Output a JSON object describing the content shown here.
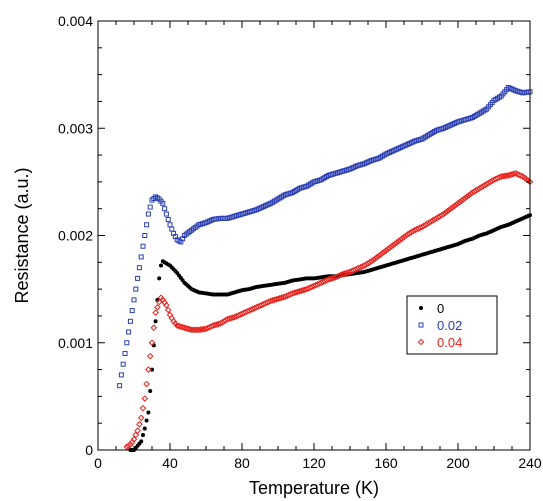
{
  "chart_data": {
    "type": "scatter",
    "title": "",
    "xlabel": "Temperature (K)",
    "ylabel": "Resistance (a.u.)",
    "xlim": [
      0,
      240
    ],
    "ylim": [
      0,
      0.004
    ],
    "x_ticks": [
      0,
      40,
      80,
      120,
      160,
      200,
      240
    ],
    "x_tick_labels": [
      "0",
      "40",
      "80",
      "120",
      "160",
      "200",
      "240"
    ],
    "y_ticks": [
      0,
      0.001,
      0.002,
      0.003,
      0.004
    ],
    "y_tick_labels": [
      "0",
      "0.001",
      "0.002",
      "0.003",
      "0.004"
    ],
    "grid": false,
    "legend_position": "right",
    "series": [
      {
        "name": "0",
        "color": "#000000",
        "marker": "circle",
        "points": [
          [
            18,
            0.0
          ],
          [
            20,
            0.0
          ],
          [
            22,
            4e-05
          ],
          [
            24,
            8e-05
          ],
          [
            26,
            0.0002
          ],
          [
            28,
            0.00035
          ],
          [
            30,
            0.00075
          ],
          [
            32,
            0.0012
          ],
          [
            34,
            0.0016
          ],
          [
            35,
            0.00172
          ],
          [
            36,
            0.00176
          ],
          [
            38,
            0.00174
          ],
          [
            40,
            0.00172
          ],
          [
            44,
            0.00165
          ],
          [
            48,
            0.00156
          ],
          [
            52,
            0.0015
          ],
          [
            56,
            0.00147
          ],
          [
            60,
            0.00146
          ],
          [
            64,
            0.00145
          ],
          [
            68,
            0.00145
          ],
          [
            72,
            0.00145
          ],
          [
            76,
            0.00147
          ],
          [
            80,
            0.00149
          ],
          [
            84,
            0.0015
          ],
          [
            88,
            0.00152
          ],
          [
            92,
            0.00153
          ],
          [
            96,
            0.00154
          ],
          [
            100,
            0.00155
          ],
          [
            104,
            0.00156
          ],
          [
            108,
            0.00158
          ],
          [
            112,
            0.00159
          ],
          [
            116,
            0.0016
          ],
          [
            120,
            0.0016
          ],
          [
            124,
            0.00161
          ],
          [
            128,
            0.00162
          ],
          [
            132,
            0.00162
          ],
          [
            136,
            0.00163
          ],
          [
            140,
            0.00164
          ],
          [
            144,
            0.00165
          ],
          [
            148,
            0.00166
          ],
          [
            152,
            0.00168
          ],
          [
            156,
            0.0017
          ],
          [
            160,
            0.00172
          ],
          [
            164,
            0.00174
          ],
          [
            168,
            0.00176
          ],
          [
            172,
            0.00178
          ],
          [
            176,
            0.0018
          ],
          [
            180,
            0.00182
          ],
          [
            184,
            0.00184
          ],
          [
            188,
            0.00186
          ],
          [
            192,
            0.00188
          ],
          [
            196,
            0.0019
          ],
          [
            200,
            0.00192
          ],
          [
            204,
            0.00195
          ],
          [
            208,
            0.00197
          ],
          [
            212,
            0.002
          ],
          [
            216,
            0.00202
          ],
          [
            220,
            0.00205
          ],
          [
            224,
            0.00208
          ],
          [
            228,
            0.0021
          ],
          [
            232,
            0.00213
          ],
          [
            236,
            0.00216
          ],
          [
            240,
            0.00219
          ]
        ]
      },
      {
        "name": "0.02",
        "color": "#2b3fb3",
        "marker": "square",
        "points": [
          [
            12,
            0.0006
          ],
          [
            14,
            0.0008
          ],
          [
            16,
            0.001
          ],
          [
            18,
            0.0012
          ],
          [
            20,
            0.0014
          ],
          [
            22,
            0.0016
          ],
          [
            24,
            0.0018
          ],
          [
            26,
            0.002
          ],
          [
            28,
            0.0022
          ],
          [
            30,
            0.00233
          ],
          [
            32,
            0.00236
          ],
          [
            34,
            0.00234
          ],
          [
            36,
            0.0023
          ],
          [
            38,
            0.0022
          ],
          [
            40,
            0.0021
          ],
          [
            42,
            0.00202
          ],
          [
            44,
            0.00196
          ],
          [
            46,
            0.00194
          ],
          [
            48,
            0.002
          ],
          [
            52,
            0.00205
          ],
          [
            56,
            0.0021
          ],
          [
            60,
            0.00212
          ],
          [
            64,
            0.00215
          ],
          [
            68,
            0.00216
          ],
          [
            72,
            0.00216
          ],
          [
            76,
            0.00218
          ],
          [
            80,
            0.0022
          ],
          [
            84,
            0.00222
          ],
          [
            88,
            0.00224
          ],
          [
            92,
            0.00227
          ],
          [
            96,
            0.0023
          ],
          [
            100,
            0.00234
          ],
          [
            104,
            0.00238
          ],
          [
            108,
            0.0024
          ],
          [
            112,
            0.00244
          ],
          [
            116,
            0.00246
          ],
          [
            120,
            0.0025
          ],
          [
            124,
            0.00252
          ],
          [
            128,
            0.00256
          ],
          [
            132,
            0.00258
          ],
          [
            136,
            0.0026
          ],
          [
            140,
            0.00262
          ],
          [
            144,
            0.00265
          ],
          [
            148,
            0.00267
          ],
          [
            152,
            0.0027
          ],
          [
            156,
            0.00272
          ],
          [
            160,
            0.00276
          ],
          [
            164,
            0.00279
          ],
          [
            168,
            0.00282
          ],
          [
            172,
            0.00285
          ],
          [
            176,
            0.00288
          ],
          [
            180,
            0.0029
          ],
          [
            184,
            0.00294
          ],
          [
            188,
            0.00298
          ],
          [
            192,
            0.003
          ],
          [
            196,
            0.00303
          ],
          [
            200,
            0.00306
          ],
          [
            204,
            0.00308
          ],
          [
            208,
            0.0031
          ],
          [
            212,
            0.00314
          ],
          [
            216,
            0.00318
          ],
          [
            220,
            0.00326
          ],
          [
            224,
            0.0033
          ],
          [
            228,
            0.00338
          ],
          [
            232,
            0.00335
          ],
          [
            236,
            0.00333
          ],
          [
            240,
            0.00334
          ]
        ]
      },
      {
        "name": "0.04",
        "color": "#e8231d",
        "marker": "diamond",
        "points": [
          [
            16,
            3e-05
          ],
          [
            18,
            5e-05
          ],
          [
            20,
            0.0001
          ],
          [
            22,
            0.00018
          ],
          [
            24,
            0.0003
          ],
          [
            26,
            0.00048
          ],
          [
            28,
            0.00075
          ],
          [
            30,
            0.001
          ],
          [
            32,
            0.00128
          ],
          [
            34,
            0.00138
          ],
          [
            35,
            0.00142
          ],
          [
            36,
            0.0014
          ],
          [
            38,
            0.00135
          ],
          [
            40,
            0.00126
          ],
          [
            42,
            0.0012
          ],
          [
            44,
            0.00116
          ],
          [
            48,
            0.00114
          ],
          [
            52,
            0.00112
          ],
          [
            56,
            0.00112
          ],
          [
            60,
            0.00113
          ],
          [
            64,
            0.00116
          ],
          [
            68,
            0.00118
          ],
          [
            72,
            0.00122
          ],
          [
            76,
            0.00124
          ],
          [
            80,
            0.00127
          ],
          [
            84,
            0.0013
          ],
          [
            88,
            0.00133
          ],
          [
            92,
            0.00136
          ],
          [
            96,
            0.00139
          ],
          [
            100,
            0.00141
          ],
          [
            104,
            0.00143
          ],
          [
            108,
            0.00146
          ],
          [
            112,
            0.00148
          ],
          [
            116,
            0.0015
          ],
          [
            120,
            0.00153
          ],
          [
            124,
            0.00156
          ],
          [
            128,
            0.00159
          ],
          [
            132,
            0.00161
          ],
          [
            136,
            0.00164
          ],
          [
            140,
            0.00166
          ],
          [
            144,
            0.00169
          ],
          [
            148,
            0.00172
          ],
          [
            152,
            0.00176
          ],
          [
            156,
            0.00181
          ],
          [
            160,
            0.00186
          ],
          [
            164,
            0.00191
          ],
          [
            168,
            0.00196
          ],
          [
            172,
            0.00201
          ],
          [
            176,
            0.00205
          ],
          [
            180,
            0.00208
          ],
          [
            184,
            0.00212
          ],
          [
            188,
            0.00216
          ],
          [
            192,
            0.0022
          ],
          [
            196,
            0.00225
          ],
          [
            200,
            0.0023
          ],
          [
            204,
            0.00235
          ],
          [
            208,
            0.0024
          ],
          [
            212,
            0.00244
          ],
          [
            216,
            0.00248
          ],
          [
            220,
            0.00252
          ],
          [
            224,
            0.00255
          ],
          [
            228,
            0.00256
          ],
          [
            232,
            0.00258
          ],
          [
            236,
            0.00255
          ],
          [
            240,
            0.0025
          ]
        ]
      }
    ]
  }
}
